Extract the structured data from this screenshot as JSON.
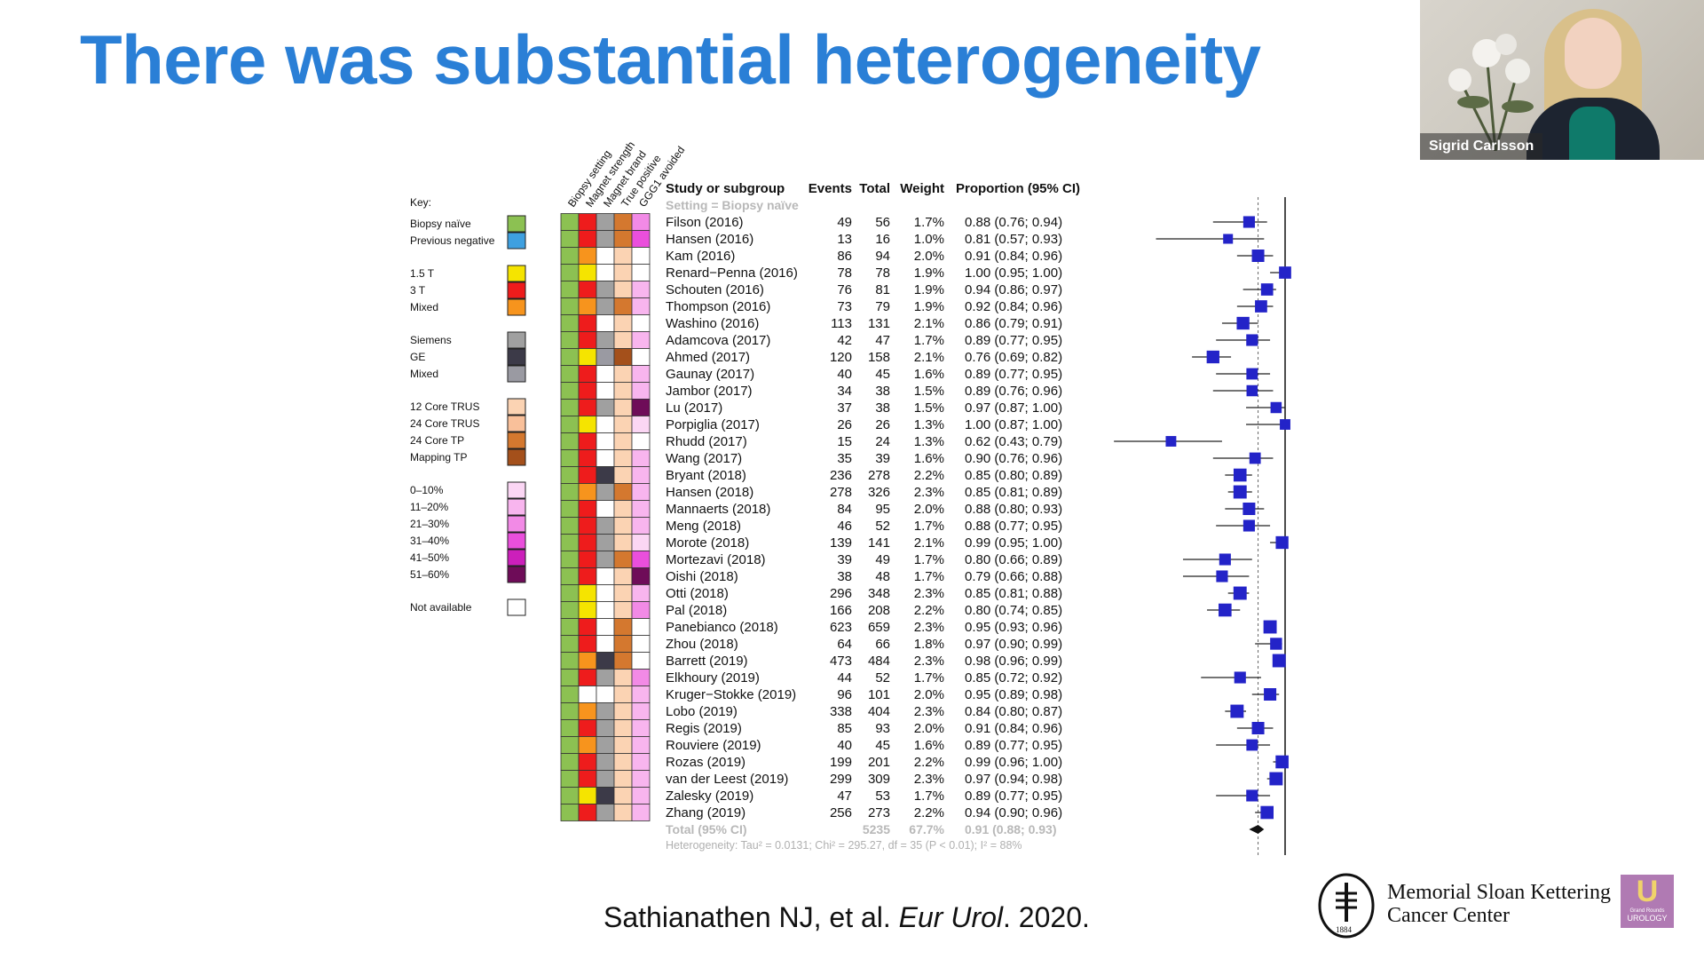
{
  "slide": {
    "title": "There was substantial heterogeneity",
    "citation_pre": "Sathianathen NJ, et al. ",
    "citation_journal": "Eur Urol",
    "citation_post": ". 2020."
  },
  "video": {
    "speaker_name": "Sigrid Carlsson"
  },
  "logo": {
    "line1": "Memorial Sloan Kettering",
    "line2": "Cancer Center",
    "year": "1884",
    "badge_line1": "Grand Rounds",
    "badge_line2": "UROLOGY"
  },
  "colors": {
    "title": "#2a7fd6",
    "marker": "#2323c8",
    "naive": "#8cc152",
    "negative": "#3ea0e0",
    "t15": "#f5e400",
    "t3": "#ee1c1c",
    "tmixed": "#f7941d",
    "siemens": "#a0a0a0",
    "ge": "#3c3a48",
    "vmixed": "#9a9aa2",
    "core12": "#fbd3b3",
    "core24": "#f9c09a",
    "tp24": "#d4782f",
    "mapping": "#a4501b",
    "p10": "#fbd6f4",
    "p20": "#f8b5ee",
    "p30": "#f28ae6",
    "p40": "#ea4fdc",
    "p50": "#cc1fbb",
    "p60": "#6e0c58",
    "na": "#ffffff"
  },
  "chart_data": {
    "type": "forest",
    "column_headers": [
      "Biopsy setting",
      "Magnet strength",
      "Magnet brand",
      "True positive",
      "GGG1 avoided"
    ],
    "table_headers": {
      "study": "Study or subgroup",
      "events": "Events",
      "total": "Total",
      "weight": "Weight",
      "prop": "Proportion (95% CI)"
    },
    "setting_label": "Setting = Biopsy naïve",
    "key": {
      "title": "Key:",
      "groups": [
        [
          {
            "label": "Biopsy naïve",
            "color": "naive"
          },
          {
            "label": "Previous negative",
            "color": "negative"
          }
        ],
        [
          {
            "label": "1.5 T",
            "color": "t15"
          },
          {
            "label": "3 T",
            "color": "t3"
          },
          {
            "label": "Mixed",
            "color": "tmixed"
          }
        ],
        [
          {
            "label": "Siemens",
            "color": "siemens"
          },
          {
            "label": "GE",
            "color": "ge"
          },
          {
            "label": "Mixed",
            "color": "vmixed"
          }
        ],
        [
          {
            "label": "12 Core TRUS",
            "color": "core12"
          },
          {
            "label": "24 Core TRUS",
            "color": "core24"
          },
          {
            "label": "24 Core TP",
            "color": "tp24"
          },
          {
            "label": "Mapping TP",
            "color": "mapping"
          }
        ],
        [
          {
            "label": "0–10%",
            "color": "p10"
          },
          {
            "label": "11–20%",
            "color": "p20"
          },
          {
            "label": "21–30%",
            "color": "p30"
          },
          {
            "label": "31–40%",
            "color": "p40"
          },
          {
            "label": "41–50%",
            "color": "p50"
          },
          {
            "label": "51–60%",
            "color": "p60"
          }
        ],
        [
          {
            "label": "Not available",
            "color": "na"
          }
        ]
      ]
    },
    "x_axis": {
      "min": 0.4,
      "max": 1.0,
      "reference_line": 0.91
    },
    "studies": [
      {
        "name": "Filson (2016)",
        "events": "49",
        "total": "56",
        "weight": "1.7%",
        "ci": "0.88 (0.76; 0.94)",
        "est": 0.88,
        "lo": 0.76,
        "hi": 0.94,
        "c": [
          "naive",
          "t3",
          "siemens",
          "tp24",
          "p30"
        ]
      },
      {
        "name": "Hansen (2016)",
        "events": "13",
        "total": "16",
        "weight": "1.0%",
        "ci": "0.81 (0.57; 0.93)",
        "est": 0.81,
        "lo": 0.57,
        "hi": 0.93,
        "c": [
          "naive",
          "t3",
          "siemens",
          "tp24",
          "p40"
        ]
      },
      {
        "name": "Kam (2016)",
        "events": "86",
        "total": "94",
        "weight": "2.0%",
        "ci": "0.91 (0.84; 0.96)",
        "est": 0.91,
        "lo": 0.84,
        "hi": 0.96,
        "c": [
          "naive",
          "tmixed",
          "na",
          "core12",
          "na"
        ]
      },
      {
        "name": "Renard−Penna (2016)",
        "events": "78",
        "total": "78",
        "weight": "1.9%",
        "ci": "1.00 (0.95; 1.00)",
        "est": 1.0,
        "lo": 0.95,
        "hi": 1.0,
        "c": [
          "naive",
          "t15",
          "na",
          "core12",
          "na"
        ]
      },
      {
        "name": "Schouten (2016)",
        "events": "76",
        "total": "81",
        "weight": "1.9%",
        "ci": "0.94 (0.86; 0.97)",
        "est": 0.94,
        "lo": 0.86,
        "hi": 0.97,
        "c": [
          "naive",
          "t3",
          "siemens",
          "core12",
          "p20"
        ]
      },
      {
        "name": "Thompson (2016)",
        "events": "73",
        "total": "79",
        "weight": "1.9%",
        "ci": "0.92 (0.84; 0.96)",
        "est": 0.92,
        "lo": 0.84,
        "hi": 0.96,
        "c": [
          "naive",
          "tmixed",
          "siemens",
          "tp24",
          "p20"
        ]
      },
      {
        "name": "Washino (2016)",
        "events": "113",
        "total": "131",
        "weight": "2.1%",
        "ci": "0.86 (0.79; 0.91)",
        "est": 0.86,
        "lo": 0.79,
        "hi": 0.91,
        "c": [
          "naive",
          "t3",
          "na",
          "core12",
          "na"
        ]
      },
      {
        "name": "Adamcova (2017)",
        "events": "42",
        "total": "47",
        "weight": "1.7%",
        "ci": "0.89 (0.77; 0.95)",
        "est": 0.89,
        "lo": 0.77,
        "hi": 0.95,
        "c": [
          "naive",
          "t3",
          "siemens",
          "core12",
          "p20"
        ]
      },
      {
        "name": "Ahmed (2017)",
        "events": "120",
        "total": "158",
        "weight": "2.1%",
        "ci": "0.76 (0.69; 0.82)",
        "est": 0.76,
        "lo": 0.69,
        "hi": 0.82,
        "c": [
          "naive",
          "t15",
          "vmixed",
          "mapping",
          "na"
        ]
      },
      {
        "name": "Gaunay (2017)",
        "events": "40",
        "total": "45",
        "weight": "1.6%",
        "ci": "0.89 (0.77; 0.95)",
        "est": 0.89,
        "lo": 0.77,
        "hi": 0.95,
        "c": [
          "naive",
          "t3",
          "na",
          "core12",
          "p20"
        ]
      },
      {
        "name": "Jambor (2017)",
        "events": "34",
        "total": "38",
        "weight": "1.5%",
        "ci": "0.89 (0.76; 0.96)",
        "est": 0.89,
        "lo": 0.76,
        "hi": 0.96,
        "c": [
          "naive",
          "t3",
          "na",
          "core12",
          "p20"
        ]
      },
      {
        "name": "Lu (2017)",
        "events": "37",
        "total": "38",
        "weight": "1.5%",
        "ci": "0.97 (0.87; 1.00)",
        "est": 0.97,
        "lo": 0.87,
        "hi": 1.0,
        "c": [
          "naive",
          "t3",
          "siemens",
          "core12",
          "p60"
        ]
      },
      {
        "name": "Porpiglia (2017)",
        "events": "26",
        "total": "26",
        "weight": "1.3%",
        "ci": "1.00 (0.87; 1.00)",
        "est": 1.0,
        "lo": 0.87,
        "hi": 1.0,
        "c": [
          "naive",
          "t15",
          "na",
          "core12",
          "p10"
        ]
      },
      {
        "name": "Rhudd (2017)",
        "events": "15",
        "total": "24",
        "weight": "1.3%",
        "ci": "0.62 (0.43; 0.79)",
        "est": 0.62,
        "lo": 0.43,
        "hi": 0.79,
        "c": [
          "naive",
          "t3",
          "na",
          "core12",
          "na"
        ]
      },
      {
        "name": "Wang (2017)",
        "events": "35",
        "total": "39",
        "weight": "1.6%",
        "ci": "0.90 (0.76; 0.96)",
        "est": 0.9,
        "lo": 0.76,
        "hi": 0.96,
        "c": [
          "naive",
          "t3",
          "na",
          "core12",
          "p20"
        ]
      },
      {
        "name": "Bryant (2018)",
        "events": "236",
        "total": "278",
        "weight": "2.2%",
        "ci": "0.85 (0.80; 0.89)",
        "est": 0.85,
        "lo": 0.8,
        "hi": 0.89,
        "c": [
          "naive",
          "t3",
          "ge",
          "core12",
          "p20"
        ]
      },
      {
        "name": "Hansen (2018)",
        "events": "278",
        "total": "326",
        "weight": "2.3%",
        "ci": "0.85 (0.81; 0.89)",
        "est": 0.85,
        "lo": 0.81,
        "hi": 0.89,
        "c": [
          "naive",
          "tmixed",
          "siemens",
          "tp24",
          "p20"
        ]
      },
      {
        "name": "Mannaerts (2018)",
        "events": "84",
        "total": "95",
        "weight": "2.0%",
        "ci": "0.88 (0.80; 0.93)",
        "est": 0.88,
        "lo": 0.8,
        "hi": 0.93,
        "c": [
          "naive",
          "t3",
          "na",
          "core12",
          "p20"
        ]
      },
      {
        "name": "Meng (2018)",
        "events": "46",
        "total": "52",
        "weight": "1.7%",
        "ci": "0.88 (0.77; 0.95)",
        "est": 0.88,
        "lo": 0.77,
        "hi": 0.95,
        "c": [
          "naive",
          "t3",
          "siemens",
          "core12",
          "p20"
        ]
      },
      {
        "name": "Morote (2018)",
        "events": "139",
        "total": "141",
        "weight": "2.1%",
        "ci": "0.99 (0.95; 1.00)",
        "est": 0.99,
        "lo": 0.95,
        "hi": 1.0,
        "c": [
          "naive",
          "t3",
          "siemens",
          "core12",
          "p10"
        ]
      },
      {
        "name": "Mortezavi (2018)",
        "events": "39",
        "total": "49",
        "weight": "1.7%",
        "ci": "0.80 (0.66; 0.89)",
        "est": 0.8,
        "lo": 0.66,
        "hi": 0.89,
        "c": [
          "naive",
          "t3",
          "siemens",
          "tp24",
          "p40"
        ]
      },
      {
        "name": "Oishi (2018)",
        "events": "38",
        "total": "48",
        "weight": "1.7%",
        "ci": "0.79 (0.66; 0.88)",
        "est": 0.79,
        "lo": 0.66,
        "hi": 0.88,
        "c": [
          "naive",
          "t3",
          "na",
          "core12",
          "p60"
        ]
      },
      {
        "name": "Otti (2018)",
        "events": "296",
        "total": "348",
        "weight": "2.3%",
        "ci": "0.85 (0.81; 0.88)",
        "est": 0.85,
        "lo": 0.81,
        "hi": 0.88,
        "c": [
          "naive",
          "t15",
          "na",
          "core12",
          "p20"
        ]
      },
      {
        "name": "Pal (2018)",
        "events": "166",
        "total": "208",
        "weight": "2.2%",
        "ci": "0.80 (0.74; 0.85)",
        "est": 0.8,
        "lo": 0.74,
        "hi": 0.85,
        "c": [
          "naive",
          "t15",
          "na",
          "core12",
          "p30"
        ]
      },
      {
        "name": "Panebianco (2018)",
        "events": "623",
        "total": "659",
        "weight": "2.3%",
        "ci": "0.95 (0.93; 0.96)",
        "est": 0.95,
        "lo": 0.93,
        "hi": 0.96,
        "c": [
          "naive",
          "t3",
          "na",
          "tp24",
          "na"
        ]
      },
      {
        "name": "Zhou (2018)",
        "events": "64",
        "total": "66",
        "weight": "1.8%",
        "ci": "0.97 (0.90; 0.99)",
        "est": 0.97,
        "lo": 0.9,
        "hi": 0.99,
        "c": [
          "naive",
          "t3",
          "na",
          "tp24",
          "na"
        ]
      },
      {
        "name": "Barrett (2019)",
        "events": "473",
        "total": "484",
        "weight": "2.3%",
        "ci": "0.98 (0.96; 0.99)",
        "est": 0.98,
        "lo": 0.96,
        "hi": 0.99,
        "c": [
          "naive",
          "tmixed",
          "ge",
          "tp24",
          "na"
        ]
      },
      {
        "name": "Elkhoury (2019)",
        "events": "44",
        "total": "52",
        "weight": "1.7%",
        "ci": "0.85 (0.72; 0.92)",
        "est": 0.85,
        "lo": 0.72,
        "hi": 0.92,
        "c": [
          "naive",
          "t3",
          "siemens",
          "core12",
          "p30"
        ]
      },
      {
        "name": "Kruger−Stokke (2019)",
        "events": "96",
        "total": "101",
        "weight": "2.0%",
        "ci": "0.95 (0.89; 0.98)",
        "est": 0.95,
        "lo": 0.89,
        "hi": 0.98,
        "c": [
          "naive",
          "na",
          "na",
          "core12",
          "p20"
        ]
      },
      {
        "name": "Lobo (2019)",
        "events": "338",
        "total": "404",
        "weight": "2.3%",
        "ci": "0.84 (0.80; 0.87)",
        "est": 0.84,
        "lo": 0.8,
        "hi": 0.87,
        "c": [
          "naive",
          "tmixed",
          "siemens",
          "core12",
          "p20"
        ]
      },
      {
        "name": "Regis (2019)",
        "events": "85",
        "total": "93",
        "weight": "2.0%",
        "ci": "0.91 (0.84; 0.96)",
        "est": 0.91,
        "lo": 0.84,
        "hi": 0.96,
        "c": [
          "naive",
          "t3",
          "siemens",
          "core12",
          "p20"
        ]
      },
      {
        "name": "Rouviere (2019)",
        "events": "40",
        "total": "45",
        "weight": "1.6%",
        "ci": "0.89 (0.77; 0.95)",
        "est": 0.89,
        "lo": 0.77,
        "hi": 0.95,
        "c": [
          "naive",
          "tmixed",
          "siemens",
          "core12",
          "p20"
        ]
      },
      {
        "name": "Rozas (2019)",
        "events": "199",
        "total": "201",
        "weight": "2.2%",
        "ci": "0.99 (0.96; 1.00)",
        "est": 0.99,
        "lo": 0.96,
        "hi": 1.0,
        "c": [
          "naive",
          "t3",
          "siemens",
          "core12",
          "p20"
        ]
      },
      {
        "name": "van der Leest (2019)",
        "events": "299",
        "total": "309",
        "weight": "2.3%",
        "ci": "0.97 (0.94; 0.98)",
        "est": 0.97,
        "lo": 0.94,
        "hi": 0.98,
        "c": [
          "naive",
          "t3",
          "siemens",
          "core12",
          "p20"
        ]
      },
      {
        "name": "Zalesky (2019)",
        "events": "47",
        "total": "53",
        "weight": "1.7%",
        "ci": "0.89 (0.77; 0.95)",
        "est": 0.89,
        "lo": 0.77,
        "hi": 0.95,
        "c": [
          "naive",
          "t15",
          "ge",
          "core12",
          "p20"
        ]
      },
      {
        "name": "Zhang (2019)",
        "events": "256",
        "total": "273",
        "weight": "2.2%",
        "ci": "0.94 (0.90; 0.96)",
        "est": 0.94,
        "lo": 0.9,
        "hi": 0.96,
        "c": [
          "naive",
          "t3",
          "siemens",
          "core12",
          "p20"
        ]
      }
    ],
    "total": {
      "label": "Total (95% CI)",
      "total": "5235",
      "weight": "67.7%",
      "ci": "0.91 (0.88; 0.93)",
      "est": 0.91,
      "lo": 0.88,
      "hi": 0.93
    },
    "heterogeneity": "Heterogeneity: Tau² = 0.0131; Chi² = 295.27, df = 35 (P < 0.01); I² = 88%"
  }
}
